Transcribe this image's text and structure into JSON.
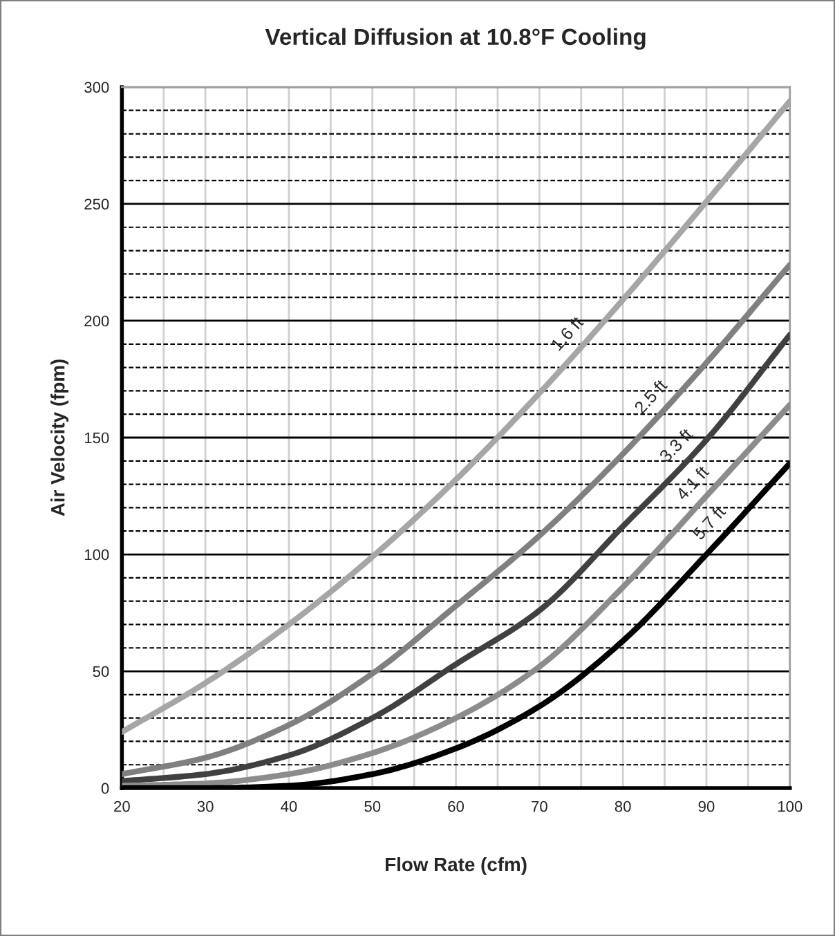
{
  "chart_data": {
    "type": "line",
    "title": "Vertical Diffusion at 10.8°F Cooling",
    "xlabel": "Flow Rate (cfm)",
    "ylabel": "Air Velocity (fpm)",
    "x": [
      20,
      30,
      40,
      50,
      60,
      70,
      80,
      90,
      100
    ],
    "series": [
      {
        "color": "#a6a6a6",
        "values": [
          24,
          45,
          70,
          99,
          132,
          169,
          209,
          251,
          294
        ]
      },
      {
        "color": "#808080",
        "values": [
          6,
          13,
          27,
          49,
          78,
          108,
          143,
          182,
          224
        ]
      },
      {
        "color": "#404040",
        "values": [
          3,
          6,
          14,
          30,
          53,
          76,
          112,
          149,
          194
        ]
      },
      {
        "color": "#8c8c8c",
        "values": [
          1,
          2,
          6,
          15,
          30,
          52,
          86,
          125,
          164
        ]
      },
      {
        "color": "#000000",
        "values": [
          0,
          0,
          1,
          6,
          17,
          35,
          63,
          100,
          139
        ]
      }
    ],
    "annotations": [
      {
        "text": "1.6 ft",
        "x": 75,
        "y": 189
      },
      {
        "text": "2.5 ft",
        "x": 85,
        "y": 162
      },
      {
        "text": "3.3 ft",
        "x": 88,
        "y": 141
      },
      {
        "text": "4.1 ft",
        "x": 90,
        "y": 125
      },
      {
        "text": "5.7 ft",
        "x": 92,
        "y": 108
      }
    ],
    "xlim": [
      20,
      100
    ],
    "ylim": [
      0,
      300
    ],
    "xticks": [
      20,
      {
        "value": 25,
        "label": null
      },
      30,
      {
        "value": 35,
        "label": null
      },
      40,
      {
        "value": 45,
        "label": null
      },
      50,
      {
        "value": 55,
        "label": null
      },
      60,
      {
        "value": 65,
        "label": null
      },
      70,
      {
        "value": 75,
        "label": null
      },
      80,
      {
        "value": 85,
        "label": null
      },
      90,
      {
        "value": 95,
        "label": null
      },
      100
    ],
    "yticks": [
      0,
      {
        "value": 10,
        "label": null
      },
      {
        "value": 20,
        "label": null
      },
      {
        "value": 30,
        "label": null
      },
      {
        "value": 40,
        "label": null
      },
      50,
      {
        "value": 60,
        "label": null
      },
      {
        "value": 70,
        "label": null
      },
      {
        "value": 80,
        "label": null
      },
      {
        "value": 90,
        "label": null
      },
      100,
      {
        "value": 110,
        "label": null
      },
      {
        "value": 120,
        "label": null
      },
      {
        "value": 130,
        "label": null
      },
      {
        "value": 140,
        "label": null
      },
      150,
      {
        "value": 160,
        "label": null
      },
      {
        "value": 170,
        "label": null
      },
      {
        "value": 180,
        "label": null
      },
      {
        "value": 190,
        "label": null
      },
      200,
      {
        "value": 210,
        "label": null
      },
      {
        "value": 220,
        "label": null
      },
      {
        "value": 230,
        "label": null
      },
      {
        "value": 240,
        "label": null
      },
      250,
      {
        "value": 260,
        "label": null
      },
      {
        "value": 270,
        "label": null
      },
      {
        "value": 280,
        "label": null
      },
      {
        "value": 290,
        "label": null
      },
      300
    ],
    "grid": true,
    "legend": false,
    "line_style": "solid",
    "marker": "none"
  }
}
